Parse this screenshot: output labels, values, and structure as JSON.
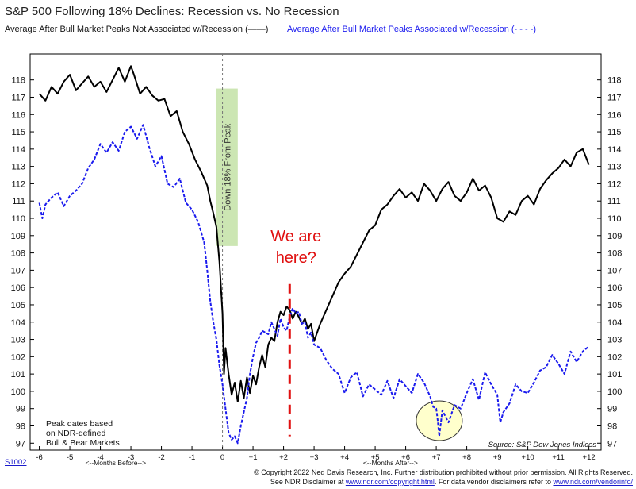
{
  "chart_data": {
    "type": "line",
    "title": "S&P 500 Following 18% Declines: Recession vs. No Recession",
    "xlabel_before": "<--Months Before-->",
    "xlabel_after": "<--Months After-->",
    "x_ticks": [
      -6,
      -5,
      -4,
      -3,
      -2,
      -1,
      0,
      1,
      2,
      3,
      4,
      5,
      6,
      7,
      8,
      9,
      10,
      11,
      12
    ],
    "x_tick_labels": [
      "-6",
      "-5",
      "-4",
      "-3",
      "-2",
      "-1",
      "0",
      "+1",
      "+2",
      "+3",
      "+4",
      "+5",
      "+6",
      "+7",
      "+8",
      "+9",
      "+10",
      "+11",
      "+12"
    ],
    "xlim": [
      -6.3,
      12.4
    ],
    "ylim": [
      96.6,
      119.5
    ],
    "y_ticks": [
      97,
      98,
      99,
      100,
      101,
      102,
      103,
      104,
      105,
      106,
      107,
      108,
      109,
      110,
      111,
      112,
      113,
      114,
      115,
      116,
      117,
      118
    ],
    "series": [
      {
        "name": "Average After Bull Market Peaks Not Associated w/Recession",
        "legend_label": "Average After Bull Market Peaks Not Associated w/Recession",
        "legend_sym": "(——)",
        "color": "#000000",
        "style": "solid",
        "x": [
          -6,
          -5.8,
          -5.6,
          -5.4,
          -5.2,
          -5.0,
          -4.8,
          -4.6,
          -4.4,
          -4.2,
          -4.0,
          -3.8,
          -3.6,
          -3.4,
          -3.2,
          -3.0,
          -2.9,
          -2.7,
          -2.5,
          -2.3,
          -2.1,
          -1.9,
          -1.7,
          -1.5,
          -1.3,
          -1.1,
          -0.9,
          -0.7,
          -0.5,
          -0.4,
          -0.3,
          -0.2,
          -0.1,
          0,
          0.05,
          0.1,
          0.2,
          0.3,
          0.4,
          0.5,
          0.6,
          0.7,
          0.8,
          0.9,
          1.0,
          1.1,
          1.2,
          1.3,
          1.4,
          1.5,
          1.6,
          1.7,
          1.8,
          1.9,
          2.0,
          2.1,
          2.2,
          2.3,
          2.4,
          2.5,
          2.6,
          2.7,
          2.8,
          2.9,
          3.0,
          3.2,
          3.4,
          3.6,
          3.8,
          4.0,
          4.2,
          4.4,
          4.6,
          4.8,
          5.0,
          5.2,
          5.4,
          5.6,
          5.8,
          6.0,
          6.2,
          6.4,
          6.6,
          6.8,
          7.0,
          7.2,
          7.4,
          7.6,
          7.8,
          8.0,
          8.2,
          8.4,
          8.6,
          8.8,
          9.0,
          9.2,
          9.4,
          9.6,
          9.8,
          10.0,
          10.2,
          10.4,
          10.6,
          10.8,
          11.0,
          11.2,
          11.4,
          11.6,
          11.8,
          12.0
        ],
        "values": [
          117.2,
          116.8,
          117.6,
          117.2,
          117.9,
          118.3,
          117.4,
          117.8,
          118.2,
          117.6,
          117.9,
          117.3,
          118.0,
          118.7,
          117.9,
          118.8,
          118.3,
          117.2,
          117.6,
          117.1,
          116.8,
          116.9,
          115.9,
          116.2,
          115.0,
          114.3,
          113.4,
          112.7,
          111.9,
          111.0,
          110.3,
          109.5,
          107.5,
          104.5,
          101.0,
          102.5,
          101.0,
          99.8,
          100.5,
          99.4,
          100.6,
          99.6,
          100.8,
          99.9,
          100.9,
          100.4,
          101.4,
          102.1,
          101.4,
          102.7,
          103.1,
          102.9,
          104.0,
          104.6,
          104.4,
          104.9,
          104.7,
          104.2,
          104.6,
          104.3,
          103.9,
          104.2,
          103.6,
          103.9,
          102.9,
          103.9,
          104.7,
          105.5,
          106.3,
          106.8,
          107.2,
          107.9,
          108.6,
          109.3,
          109.6,
          110.5,
          110.8,
          111.3,
          111.7,
          111.2,
          111.5,
          111.0,
          112.0,
          111.6,
          111.0,
          111.7,
          112.1,
          111.3,
          111.0,
          111.5,
          112.3,
          111.6,
          111.9,
          111.2,
          110.0,
          109.8,
          110.4,
          110.2,
          111.0,
          111.3,
          110.8,
          111.7,
          112.2,
          112.6,
          112.9,
          113.4,
          113.0,
          113.8,
          114.0,
          113.1
        ]
      },
      {
        "name": "Average After Bull Market Peaks Associated w/Recession",
        "legend_label": "Average After Bull Market Peaks Associated w/Recession",
        "legend_sym": "(- - - -)",
        "color": "#1a1aee",
        "style": "dashed",
        "x": [
          -6,
          -5.9,
          -5.8,
          -5.6,
          -5.4,
          -5.2,
          -5.0,
          -4.8,
          -4.6,
          -4.4,
          -4.2,
          -4.0,
          -3.8,
          -3.6,
          -3.4,
          -3.2,
          -3.0,
          -2.8,
          -2.6,
          -2.4,
          -2.2,
          -2.0,
          -1.8,
          -1.6,
          -1.4,
          -1.2,
          -1.0,
          -0.8,
          -0.6,
          -0.5,
          -0.4,
          -0.3,
          -0.2,
          -0.1,
          0,
          0.1,
          0.2,
          0.3,
          0.4,
          0.5,
          0.6,
          0.7,
          0.8,
          0.9,
          1.0,
          1.1,
          1.2,
          1.3,
          1.4,
          1.5,
          1.6,
          1.7,
          1.8,
          1.9,
          2.0,
          2.1,
          2.2,
          2.3,
          2.4,
          2.5,
          2.6,
          2.7,
          2.8,
          2.9,
          3.0,
          3.2,
          3.4,
          3.6,
          3.8,
          4.0,
          4.2,
          4.4,
          4.6,
          4.8,
          5.0,
          5.2,
          5.4,
          5.6,
          5.8,
          6.0,
          6.2,
          6.4,
          6.6,
          6.8,
          6.9,
          7.0,
          7.05,
          7.1,
          7.2,
          7.4,
          7.6,
          7.8,
          8.0,
          8.2,
          8.4,
          8.6,
          8.8,
          9.0,
          9.1,
          9.2,
          9.4,
          9.6,
          9.8,
          10.0,
          10.2,
          10.4,
          10.6,
          10.8,
          11.0,
          11.2,
          11.4,
          11.6,
          11.8,
          12.0
        ],
        "values": [
          110.9,
          110.0,
          110.8,
          111.2,
          111.5,
          110.7,
          111.3,
          111.6,
          112.0,
          112.9,
          113.4,
          114.3,
          113.8,
          114.4,
          113.9,
          115.0,
          115.3,
          114.6,
          115.4,
          114.1,
          113.0,
          113.6,
          112.0,
          111.8,
          112.3,
          110.9,
          110.5,
          109.8,
          108.6,
          107.0,
          105.2,
          104.0,
          103.0,
          101.5,
          100.4,
          99.0,
          97.6,
          97.2,
          97.4,
          97.0,
          98.0,
          98.8,
          99.6,
          101.0,
          102.0,
          102.8,
          103.1,
          103.5,
          103.4,
          103.3,
          104.0,
          103.6,
          103.2,
          104.2,
          103.7,
          103.5,
          104.3,
          104.8,
          104.5,
          104.6,
          103.9,
          104.0,
          103.1,
          103.4,
          102.7,
          102.5,
          101.8,
          101.3,
          101.0,
          99.9,
          100.8,
          101.1,
          99.7,
          100.4,
          100.1,
          99.8,
          100.6,
          99.6,
          100.7,
          100.3,
          99.9,
          101.0,
          100.5,
          99.7,
          99.1,
          99.0,
          98.3,
          97.4,
          98.9,
          98.2,
          99.2,
          99.0,
          99.9,
          100.7,
          99.5,
          101.1,
          100.4,
          99.8,
          98.2,
          98.8,
          99.3,
          100.4,
          100.0,
          99.9,
          100.5,
          101.2,
          101.4,
          102.1,
          101.6,
          101.0,
          102.3,
          101.7,
          102.3,
          102.6
        ]
      }
    ],
    "annotations": {
      "shaded_label": "Down 18% From Peak",
      "callout_line1": "We are",
      "callout_line2": "here?",
      "note_line1": "Peak dates based",
      "note_line2": "on NDR-defined",
      "note_line3": "Bull & Bear Markets",
      "source": "Source: S&P Dow Jones Indices",
      "callout_x": 2.2,
      "shaded_y_range": [
        108.4,
        117.5
      ],
      "shaded_x_range": [
        -0.2,
        0.5
      ],
      "callout_dash_y_range": [
        97.4,
        106.2
      ],
      "circle_center": [
        7.1,
        98.3
      ],
      "circle_color": "#ffffcc"
    }
  },
  "footer": {
    "code": "S1002",
    "copyright": "© Copyright 2022 Ned Davis Research, Inc.  Further distribution prohibited without prior permission.  All Rights Reserved.",
    "disclaimer_pre": "See NDR Disclaimer at ",
    "disclaimer_link1": "www.ndr.com/copyright.html",
    "disclaimer_mid": ".  For data vendor disclaimers refer to ",
    "disclaimer_link2": "www.ndr.com/vendorinfo/"
  }
}
